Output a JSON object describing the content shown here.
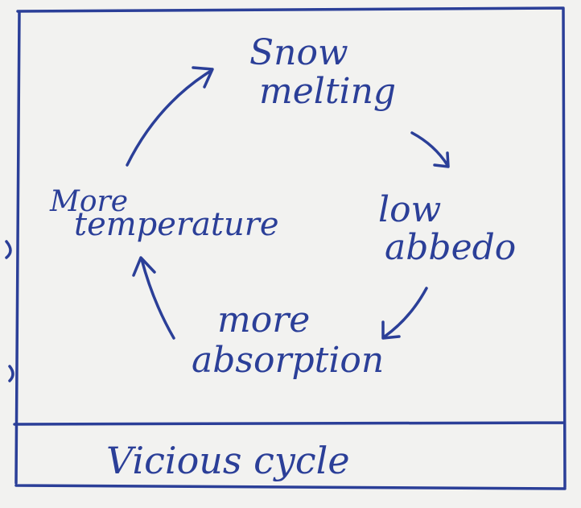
{
  "nodes": [
    {
      "lines": [
        "Snow",
        "melting"
      ]
    },
    {
      "lines": [
        "low",
        "abbedo"
      ]
    },
    {
      "lines": [
        "more",
        "absorption"
      ]
    },
    {
      "lines": [
        "More",
        "temperature"
      ]
    }
  ],
  "caption": "Vicious cycle"
}
